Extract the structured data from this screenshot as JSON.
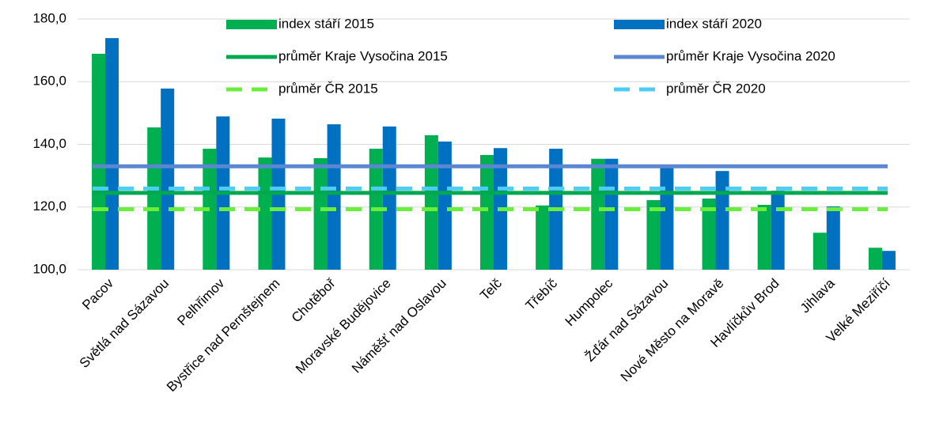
{
  "chart_data": {
    "type": "bar",
    "categories": [
      "Pacov",
      "Světlá nad Sázavou",
      "Pelhřimov",
      "Bystřice nad Pernštejnem",
      "Chotěboř",
      "Moravské Budějovice",
      "Náměšť nad Oslavou",
      "Telč",
      "Třebíč",
      "Humpolec",
      "Žďár nad Sázavou",
      "Nové Město na Moravě",
      "Havlíčkův Brod",
      "Jihlava",
      "Velké Meziříčí"
    ],
    "series": [
      {
        "name": "index stáří 2015",
        "color": "#00b050",
        "values": [
          168.9,
          145.4,
          138.6,
          135.8,
          135.6,
          138.6,
          142.9,
          136.6,
          120.5,
          135.4,
          122.2,
          122.7,
          120.7,
          111.8,
          107.0
        ]
      },
      {
        "name": "index stáří 2020",
        "color": "#0070c0",
        "values": [
          173.9,
          157.8,
          148.9,
          148.2,
          146.4,
          145.7,
          140.9,
          138.8,
          138.6,
          135.4,
          132.8,
          131.5,
          125.2,
          120.2,
          106.0
        ]
      }
    ],
    "lines": [
      {
        "name": "průměr Kraje Vysočina 2015",
        "color": "#00a84f",
        "dashed": false,
        "value": 124.5
      },
      {
        "name": "průměr Kraje Vysočina 2020",
        "color": "#5b87d2",
        "dashed": false,
        "value": 133.0
      },
      {
        "name": "průměr ČR 2015",
        "color": "#6aee3c",
        "dashed": true,
        "value": 119.3
      },
      {
        "name": "průměr ČR 2020",
        "color": "#4dccf5",
        "dashed": true,
        "value": 125.9
      }
    ],
    "ylim": [
      100,
      180
    ],
    "yticks": [
      {
        "value": 100,
        "label": "100,0"
      },
      {
        "value": 120,
        "label": "120,0"
      },
      {
        "value": 140,
        "label": "140,0"
      },
      {
        "value": 160,
        "label": "160,0"
      },
      {
        "value": 180,
        "label": "180,0"
      }
    ],
    "grid": true
  }
}
